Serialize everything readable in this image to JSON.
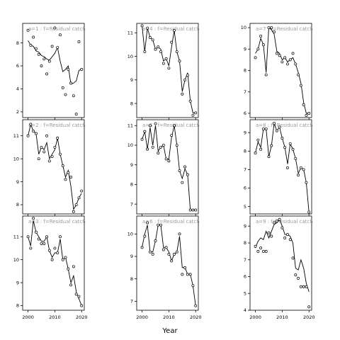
{
  "xlabel": "Year",
  "chart_data": [
    {
      "type": "line",
      "title": "a=1 : f=Residual catch",
      "xlim": [
        1998,
        2021
      ],
      "ylim": [
        1.5,
        9.7
      ],
      "yticks": [
        2,
        4,
        6,
        8
      ],
      "obs_x": [
        2000,
        2001,
        2002,
        2003,
        2004,
        2005,
        2006,
        2007,
        2008,
        2009,
        2010,
        2011,
        2012,
        2013,
        2014,
        2015,
        2016,
        2017,
        2018,
        2019,
        2020
      ],
      "obs_y": [
        9.1,
        7.8,
        8.5,
        7.5,
        7.0,
        6.0,
        6.6,
        5.3,
        6.4,
        7.7,
        9.3,
        7.6,
        8.7,
        4.1,
        3.5,
        5.7,
        4.5,
        3.4,
        1.8,
        8.1,
        5.7
      ],
      "fit_x": [
        2000,
        2001,
        2002,
        2003,
        2004,
        2005,
        2006,
        2007,
        2008,
        2009,
        2010,
        2011,
        2012,
        2013,
        2014,
        2015,
        2016,
        2017,
        2018,
        2019,
        2020
      ],
      "fit_y": [
        8.2,
        7.8,
        7.7,
        7.3,
        7.2,
        6.9,
        6.8,
        6.6,
        6.5,
        6.8,
        7.1,
        7.6,
        6.4,
        5.5,
        5.7,
        6.0,
        4.4,
        4.5,
        4.7,
        5.6,
        5.7
      ]
    },
    {
      "type": "line",
      "title": "a=2 : f=Residual catch",
      "xlim": [
        1998,
        2021
      ],
      "ylim": [
        7.6,
        11.7
      ],
      "yticks": [
        8,
        9,
        10,
        11
      ],
      "obs_x": [
        2000,
        2001,
        2002,
        2003,
        2004,
        2005,
        2006,
        2007,
        2008,
        2009,
        2010,
        2011,
        2012,
        2013,
        2014,
        2015,
        2016,
        2017,
        2018,
        2019,
        2020
      ],
      "obs_y": [
        11.0,
        11.5,
        11.2,
        11.1,
        10.0,
        10.5,
        10.3,
        11.0,
        9.9,
        10.1,
        10.5,
        10.9,
        10.2,
        9.7,
        9.1,
        9.4,
        9.2,
        7.7,
        8.0,
        8.3,
        8.6
      ],
      "fit_x": [
        2000,
        2001,
        2002,
        2003,
        2004,
        2005,
        2006,
        2007,
        2008,
        2009,
        2010,
        2011,
        2012,
        2013,
        2014,
        2015,
        2016,
        2017,
        2018,
        2019,
        2020
      ],
      "fit_y": [
        11.0,
        11.5,
        11.2,
        11.1,
        10.2,
        10.5,
        10.4,
        10.7,
        10.0,
        10.2,
        10.4,
        10.9,
        10.2,
        9.7,
        9.2,
        9.5,
        8.8,
        7.8,
        8.0,
        8.3,
        8.5
      ]
    },
    {
      "type": "line",
      "title": "a=3 : f=Residual catch",
      "xlim": [
        1998,
        2021
      ],
      "ylim": [
        7.8,
        11.9
      ],
      "yticks": [
        8,
        9,
        10,
        11
      ],
      "obs_x": [
        2000,
        2001,
        2002,
        2003,
        2004,
        2005,
        2006,
        2007,
        2008,
        2009,
        2010,
        2011,
        2012,
        2013,
        2014,
        2015,
        2016,
        2017,
        2018,
        2019,
        2020
      ],
      "obs_y": [
        11.0,
        10.5,
        11.8,
        11.2,
        10.9,
        10.7,
        10.7,
        11.0,
        10.4,
        10.0,
        10.5,
        10.3,
        11.0,
        10.0,
        10.1,
        9.6,
        8.9,
        9.7,
        8.5,
        8.4,
        8.0
      ],
      "fit_x": [
        2000,
        2001,
        2002,
        2003,
        2004,
        2005,
        2006,
        2007,
        2008,
        2009,
        2010,
        2011,
        2012,
        2013,
        2014,
        2015,
        2016,
        2017,
        2018,
        2019,
        2020
      ],
      "fit_y": [
        11.0,
        10.6,
        11.7,
        11.2,
        11.0,
        10.8,
        10.8,
        11.0,
        10.4,
        10.1,
        10.3,
        10.3,
        10.9,
        10.0,
        10.1,
        9.6,
        9.0,
        9.3,
        8.6,
        8.3,
        8.0
      ]
    },
    {
      "type": "line",
      "title": "a=4 : f=Residual catch",
      "xlim": [
        1998,
        2021
      ],
      "ylim": [
        7.4,
        11.4
      ],
      "yticks": [
        8,
        9,
        10,
        11
      ],
      "obs_x": [
        2000,
        2001,
        2002,
        2003,
        2004,
        2005,
        2006,
        2007,
        2008,
        2009,
        2010,
        2011,
        2012,
        2013,
        2014,
        2015,
        2016,
        2017,
        2018,
        2019,
        2020
      ],
      "obs_y": [
        11.3,
        10.2,
        11.2,
        10.8,
        10.7,
        10.3,
        10.4,
        10.2,
        9.7,
        9.9,
        9.5,
        10.6,
        11.1,
        10.2,
        9.8,
        8.4,
        9.0,
        9.2,
        8.1,
        7.5,
        7.6
      ],
      "fit_x": [
        2000,
        2001,
        2002,
        2003,
        2004,
        2005,
        2006,
        2007,
        2008,
        2009,
        2010,
        2011,
        2012,
        2013,
        2014,
        2015,
        2016,
        2017,
        2018,
        2019,
        2020
      ],
      "fit_y": [
        11.3,
        10.2,
        11.2,
        10.8,
        10.7,
        10.3,
        10.4,
        10.3,
        9.8,
        9.9,
        9.6,
        10.4,
        11.1,
        10.2,
        9.8,
        8.5,
        9.0,
        9.3,
        8.1,
        7.6,
        7.6
      ]
    },
    {
      "type": "line",
      "title": "a=5 : f=Residual catch",
      "xlim": [
        1998,
        2021
      ],
      "ylim": [
        6.5,
        11.3
      ],
      "yticks": [
        7,
        8,
        9,
        10,
        11
      ],
      "obs_x": [
        2000,
        2001,
        2002,
        2003,
        2004,
        2005,
        2006,
        2007,
        2008,
        2009,
        2010,
        2011,
        2012,
        2013,
        2014,
        2015,
        2016,
        2017,
        2018,
        2019,
        2020
      ],
      "obs_y": [
        10.3,
        10.7,
        9.8,
        11.0,
        9.9,
        11.1,
        9.6,
        9.9,
        10.0,
        9.3,
        9.2,
        10.5,
        11.0,
        10.0,
        8.7,
        8.1,
        8.9,
        8.5,
        6.7,
        6.7,
        6.7
      ],
      "fit_x": [
        2000,
        2001,
        2002,
        2003,
        2004,
        2005,
        2006,
        2007,
        2008,
        2009,
        2010,
        2011,
        2012,
        2013,
        2014,
        2015,
        2016,
        2017,
        2018,
        2019,
        2020
      ],
      "fit_y": [
        10.3,
        10.7,
        9.8,
        10.9,
        10.0,
        11.0,
        9.7,
        9.9,
        10.0,
        9.3,
        9.3,
        10.4,
        11.0,
        10.0,
        8.7,
        8.3,
        8.8,
        8.5,
        6.7,
        6.7,
        6.7
      ]
    },
    {
      "type": "line",
      "title": "a=6 : f=Residual catch",
      "xlim": [
        1998,
        2021
      ],
      "ylim": [
        6.6,
        10.8
      ],
      "yticks": [
        7,
        8,
        9,
        10
      ],
      "obs_x": [
        2000,
        2001,
        2002,
        2003,
        2004,
        2005,
        2006,
        2007,
        2008,
        2009,
        2010,
        2011,
        2012,
        2013,
        2014,
        2015,
        2016,
        2017,
        2018,
        2019,
        2020
      ],
      "obs_y": [
        9.4,
        9.9,
        10.5,
        9.2,
        9.1,
        9.7,
        10.4,
        10.4,
        9.3,
        9.4,
        9.1,
        8.8,
        9.1,
        9.2,
        10.0,
        8.2,
        8.5,
        8.2,
        8.2,
        7.7,
        6.8
      ],
      "fit_x": [
        2000,
        2001,
        2002,
        2003,
        2004,
        2005,
        2006,
        2007,
        2008,
        2009,
        2010,
        2011,
        2012,
        2013,
        2014,
        2015,
        2016,
        2017,
        2018,
        2019,
        2020
      ],
      "fit_y": [
        9.4,
        10.0,
        10.4,
        9.2,
        9.2,
        9.7,
        10.4,
        10.4,
        9.4,
        9.4,
        9.2,
        8.8,
        9.1,
        9.2,
        9.9,
        8.5,
        8.5,
        8.2,
        8.2,
        7.7,
        6.8
      ]
    },
    {
      "type": "line",
      "title": "a=7 : f=Residual catch",
      "xlim": [
        1998,
        2021
      ],
      "ylim": [
        5.8,
        10.2
      ],
      "yticks": [
        6,
        7,
        8,
        9,
        10
      ],
      "obs_x": [
        2000,
        2001,
        2002,
        2003,
        2004,
        2005,
        2006,
        2007,
        2008,
        2009,
        2010,
        2011,
        2012,
        2013,
        2014,
        2015,
        2016,
        2017,
        2018,
        2019,
        2020
      ],
      "obs_y": [
        8.6,
        9.0,
        9.6,
        9.2,
        7.8,
        10.0,
        10.0,
        9.8,
        8.8,
        8.7,
        8.4,
        8.6,
        8.3,
        8.5,
        8.8,
        8.3,
        7.8,
        7.3,
        6.4,
        5.9,
        6.0
      ],
      "fit_x": [
        2000,
        2001,
        2002,
        2003,
        2004,
        2005,
        2006,
        2007,
        2008,
        2009,
        2010,
        2011,
        2012,
        2013,
        2014,
        2015,
        2016,
        2017,
        2018,
        2019,
        2020
      ],
      "fit_y": [
        8.8,
        9.0,
        9.5,
        9.2,
        7.9,
        10.0,
        9.9,
        9.7,
        8.9,
        8.8,
        8.5,
        8.6,
        8.4,
        8.5,
        8.6,
        8.3,
        7.9,
        7.4,
        6.5,
        6.0,
        6.0
      ]
    },
    {
      "type": "line",
      "title": "a=8 : f=Residual catch",
      "xlim": [
        1998,
        2021
      ],
      "ylim": [
        4.6,
        9.7
      ],
      "yticks": [
        5,
        6,
        7,
        8,
        9
      ],
      "obs_x": [
        2000,
        2001,
        2002,
        2003,
        2004,
        2005,
        2006,
        2007,
        2008,
        2009,
        2010,
        2011,
        2012,
        2013,
        2014,
        2015,
        2016,
        2017,
        2018,
        2019,
        2020
      ],
      "obs_y": [
        7.9,
        8.6,
        8.1,
        9.2,
        9.2,
        7.7,
        8.3,
        9.5,
        9.1,
        9.3,
        8.7,
        8.2,
        7.1,
        8.4,
        8.1,
        7.6,
        6.7,
        7.1,
        7.0,
        6.3,
        4.7
      ],
      "fit_x": [
        2000,
        2001,
        2002,
        2003,
        2004,
        2005,
        2006,
        2007,
        2008,
        2009,
        2010,
        2011,
        2012,
        2013,
        2014,
        2015,
        2016,
        2017,
        2018,
        2019,
        2020
      ],
      "fit_y": [
        7.9,
        8.5,
        8.2,
        9.2,
        9.2,
        7.7,
        8.3,
        9.5,
        9.1,
        9.3,
        8.7,
        8.2,
        7.3,
        8.4,
        8.1,
        7.6,
        6.8,
        7.1,
        7.0,
        6.3,
        4.7
      ]
    },
    {
      "type": "line",
      "title": "a=9 : f=Residual catch",
      "xlim": [
        1998,
        2021
      ],
      "ylim": [
        4.0,
        9.6
      ],
      "yticks": [
        4,
        5,
        6,
        7,
        8,
        9
      ],
      "obs_x": [
        2000,
        2001,
        2002,
        2003,
        2004,
        2005,
        2006,
        2007,
        2008,
        2009,
        2010,
        2011,
        2012,
        2013,
        2014,
        2015,
        2016,
        2017,
        2018,
        2019,
        2020
      ],
      "obs_y": [
        7.8,
        7.5,
        7.7,
        7.5,
        7.5,
        8.6,
        8.4,
        9.2,
        9.3,
        9.4,
        8.9,
        8.3,
        8.5,
        8.2,
        7.1,
        6.1,
        5.9,
        5.4,
        5.4,
        5.4,
        4.2
      ],
      "fit_x": [
        2000,
        2001,
        2002,
        2003,
        2004,
        2005,
        2006,
        2007,
        2008,
        2009,
        2010,
        2011,
        2012,
        2013,
        2014,
        2015,
        2016,
        2017,
        2018,
        2019,
        2020
      ],
      "fit_y": [
        7.7,
        8.1,
        8.3,
        8.2,
        8.7,
        8.3,
        8.7,
        9.1,
        9.2,
        9.4,
        9.0,
        8.5,
        8.5,
        8.4,
        8.0,
        6.5,
        6.4,
        7.0,
        6.5,
        5.6,
        5.1
      ]
    }
  ]
}
